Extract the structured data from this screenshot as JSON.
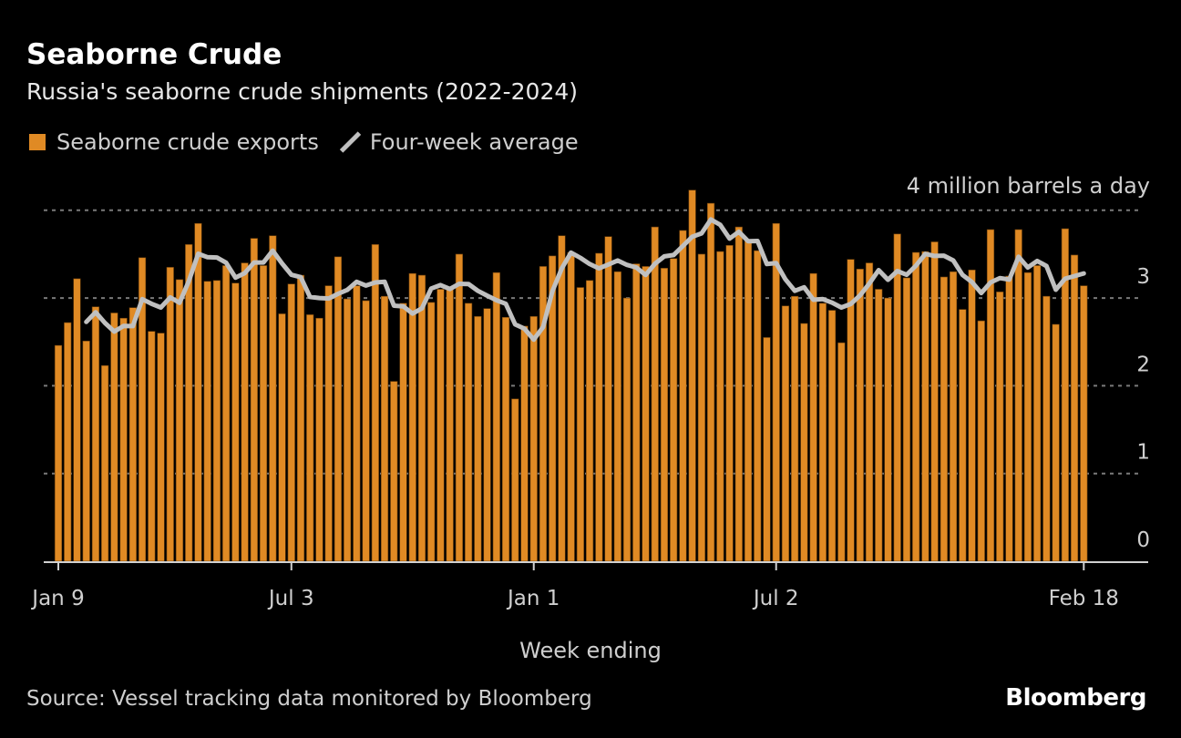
{
  "chart_data": {
    "type": "bar",
    "title": "Seaborne Crude",
    "subtitle": "Russia's seaborne crude shipments (2022-2024)",
    "xlabel": "Week ending",
    "ylabel": "million barrels a day",
    "unit_label": "4 million barrels a day",
    "ylim": [
      0,
      4
    ],
    "yticks": [
      "0",
      "1",
      "2",
      "3"
    ],
    "xticks": [
      {
        "label": "Jan 9",
        "week": 0
      },
      {
        "label": "Jul 3",
        "week": 25
      },
      {
        "label": "Jan 1",
        "week": 51
      },
      {
        "label": "Jul 2",
        "week": 77
      },
      {
        "label": "Feb 18",
        "week": 110
      }
    ],
    "grid": true,
    "legend_position": "top-left",
    "series": [
      {
        "name": "Seaborne crude exports",
        "kind": "bar",
        "color": "#e08a24",
        "values": [
          2.46,
          2.72,
          3.22,
          2.51,
          2.9,
          2.23,
          2.83,
          2.77,
          2.89,
          3.46,
          2.62,
          2.6,
          3.35,
          3.21,
          3.61,
          3.85,
          3.19,
          3.2,
          3.37,
          3.17,
          3.4,
          3.68,
          3.37,
          3.71,
          2.82,
          3.16,
          3.26,
          2.81,
          2.77,
          3.14,
          3.47,
          2.99,
          3.14,
          2.97,
          3.61,
          3.02,
          2.05,
          2.94,
          3.28,
          3.26,
          2.95,
          3.1,
          3.1,
          3.5,
          2.94,
          2.79,
          2.88,
          3.29,
          2.78,
          1.85,
          2.68,
          2.79,
          3.36,
          3.48,
          3.71,
          3.52,
          3.12,
          3.2,
          3.51,
          3.7,
          3.3,
          3.0,
          3.39,
          3.36,
          3.81,
          3.34,
          3.45,
          3.77,
          4.23,
          3.5,
          4.08,
          3.53,
          3.6,
          3.81,
          3.65,
          3.54,
          2.55,
          3.85,
          2.91,
          3.02,
          2.71,
          3.28,
          2.94,
          2.86,
          2.49,
          3.44,
          3.33,
          3.4,
          3.1,
          3.0,
          3.73,
          3.23,
          3.52,
          3.53,
          3.64,
          3.24,
          3.3,
          2.87,
          3.32,
          2.74,
          3.78,
          3.07,
          3.25,
          3.78,
          3.29,
          3.37,
          3.02,
          2.7,
          3.79,
          3.49,
          3.14
        ]
      },
      {
        "name": "Four-week average",
        "kind": "line",
        "color": "#c0c0c0",
        "window": 4
      }
    ]
  },
  "footer": {
    "source": "Source: Vessel tracking data monitored by Bloomberg",
    "brand": "Bloomberg"
  }
}
